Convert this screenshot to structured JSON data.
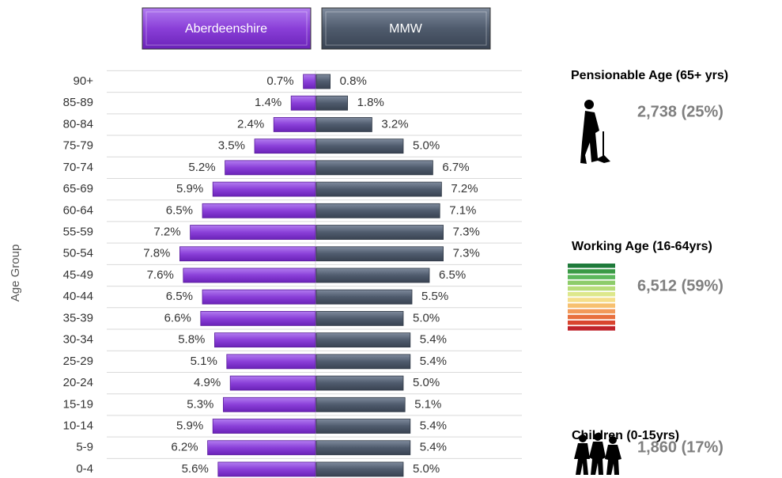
{
  "chart_data": {
    "type": "pyramid",
    "y_label": "Age Group",
    "categories": [
      "90+",
      "85-89",
      "80-84",
      "75-79",
      "70-74",
      "65-69",
      "60-64",
      "55-59",
      "50-54",
      "45-49",
      "40-44",
      "35-39",
      "30-34",
      "25-29",
      "20-24",
      "15-19",
      "10-14",
      "5-9",
      "0-4"
    ],
    "series": [
      {
        "name": "Aberdeenshire",
        "color": "#8a3fd8",
        "values": [
          0.7,
          1.4,
          2.4,
          3.5,
          5.2,
          5.9,
          6.5,
          7.2,
          7.8,
          7.6,
          6.5,
          6.6,
          5.8,
          5.1,
          4.9,
          5.3,
          5.9,
          6.2,
          5.6
        ],
        "value_labels": [
          "0.7%",
          "1.4%",
          "2.4%",
          "3.5%",
          "5.2%",
          "5.9%",
          "6.5%",
          "7.2%",
          "7.8%",
          "7.6%",
          "6.5%",
          "6.6%",
          "5.8%",
          "5.1%",
          "4.9%",
          "5.3%",
          "5.9%",
          "6.2%",
          "5.6%"
        ]
      },
      {
        "name": "MMW",
        "color": "#4f5b6d",
        "values": [
          0.8,
          1.8,
          3.2,
          5.0,
          6.7,
          7.2,
          7.1,
          7.3,
          7.3,
          6.5,
          5.5,
          5.0,
          5.4,
          5.4,
          5.0,
          5.1,
          5.4,
          5.4,
          5.0
        ],
        "value_labels": [
          "0.8%",
          "1.8%",
          "3.2%",
          "5.0%",
          "6.7%",
          "7.2%",
          "7.1%",
          "7.3%",
          "7.3%",
          "6.5%",
          "5.5%",
          "5.0%",
          "5.4%",
          "5.4%",
          "5.0%",
          "5.1%",
          "5.4%",
          "5.4%",
          "5.0%"
        ]
      }
    ],
    "grid": true
  },
  "panels": [
    {
      "title": "Pensionable Age (65+ yrs)",
      "value": "2,738 (25%)"
    },
    {
      "title": "Working Age (16-64yrs)",
      "value": "6,512 (59%)"
    },
    {
      "title": "Children (0-15yrs)",
      "value": "1,860 (17%)"
    }
  ]
}
